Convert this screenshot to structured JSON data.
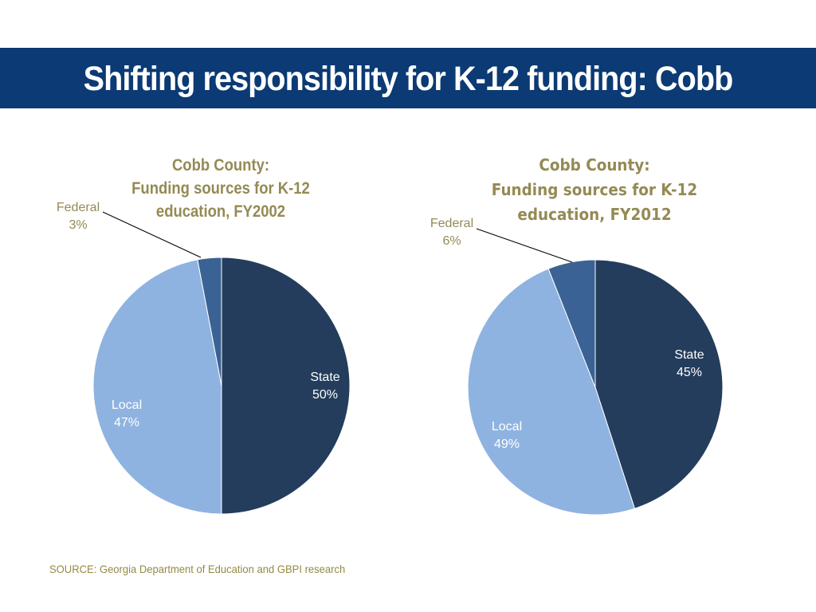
{
  "header": {
    "title": "Shifting responsibility for K-12 funding: Cobb"
  },
  "colors": {
    "title_bar": "#0b3a74",
    "state": "#243d5c",
    "local": "#8fb3e0",
    "federal": "#3a6294",
    "chart_title": "#948a54",
    "source": "#958a45"
  },
  "chart_data": [
    {
      "type": "pie",
      "title_lines": [
        "Cobb County:",
        "Funding sources for K-12",
        "education, FY2002"
      ],
      "slices": [
        {
          "label": "State",
          "value": 50,
          "display": "50%",
          "color": "#243d5c"
        },
        {
          "label": "Local",
          "value": 47,
          "display": "47%",
          "color": "#8fb3e0"
        },
        {
          "label": "Federal",
          "value": 3,
          "display": "3%",
          "color": "#3a6294"
        }
      ]
    },
    {
      "type": "pie",
      "title_lines": [
        "Cobb County:",
        "Funding sources for K-12",
        "education, FY2012"
      ],
      "slices": [
        {
          "label": "State",
          "value": 45,
          "display": "45%",
          "color": "#243d5c"
        },
        {
          "label": "Local",
          "value": 49,
          "display": "49%",
          "color": "#8fb3e0"
        },
        {
          "label": "Federal",
          "value": 6,
          "display": "6%",
          "color": "#3a6294"
        }
      ]
    }
  ],
  "footer": {
    "source": "SOURCE: Georgia Department of Education and GBPI research"
  }
}
